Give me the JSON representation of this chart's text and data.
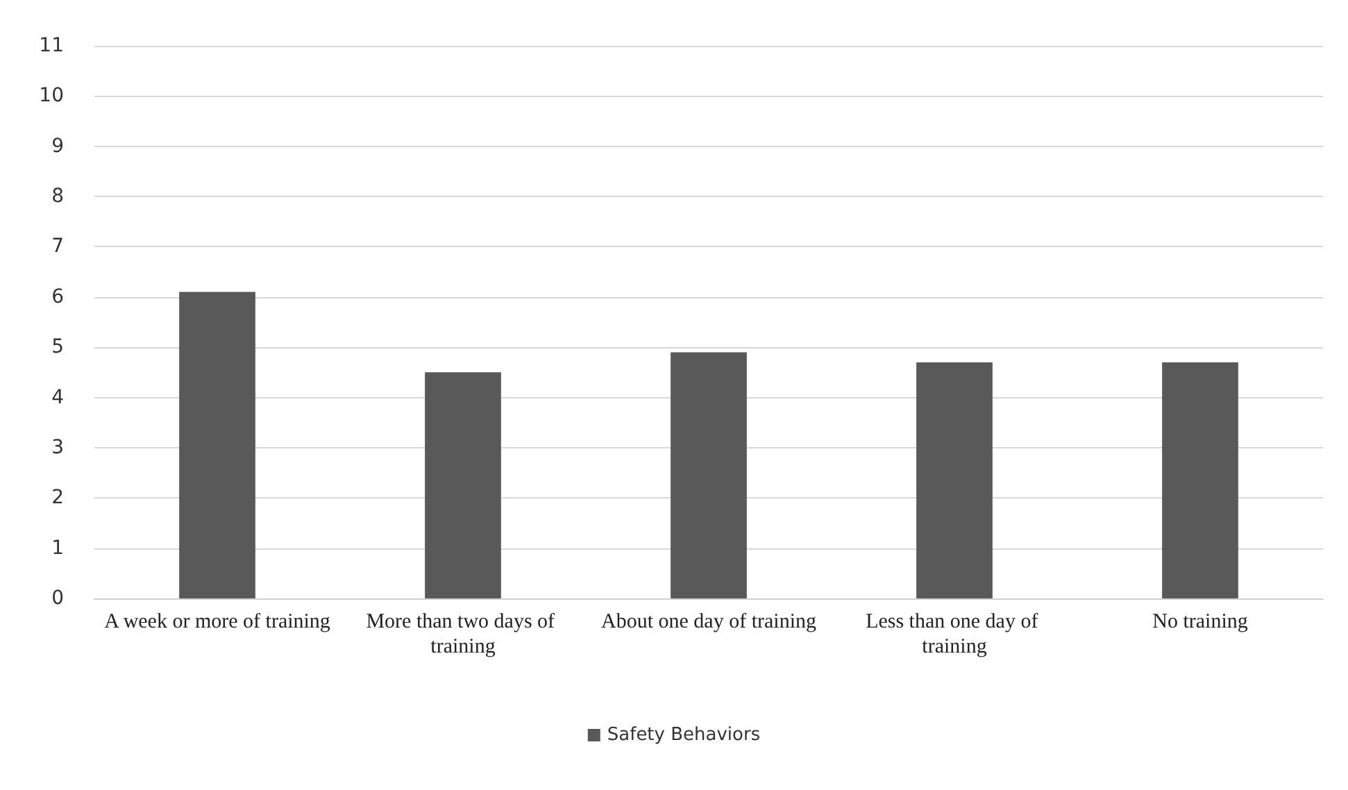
{
  "chart_data": {
    "type": "bar",
    "categories": [
      "A week or more of training",
      "More than two days of training",
      "About one day of training",
      "Less than one day of training",
      "No training"
    ],
    "series": [
      {
        "name": "Safety Behaviors",
        "color": "#595959",
        "values": [
          6.1,
          4.5,
          4.9,
          4.7,
          4.7
        ]
      }
    ],
    "ylim": [
      0,
      11
    ],
    "yticks": [
      0,
      1,
      2,
      3,
      4,
      5,
      6,
      7,
      8,
      9,
      10,
      11
    ],
    "grid": "y",
    "legend": "bottom"
  }
}
